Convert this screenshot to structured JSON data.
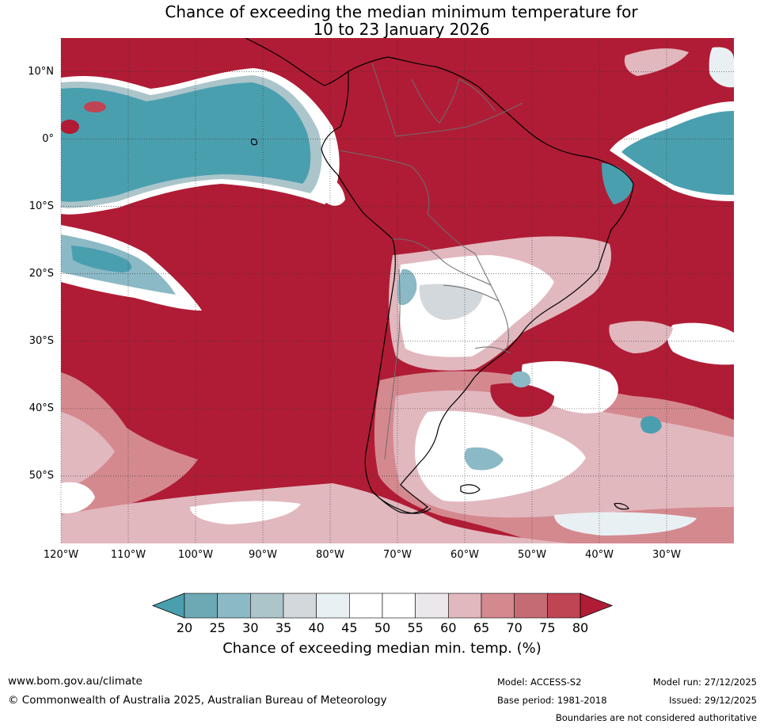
{
  "title": {
    "line1": "Chance of exceeding the median minimum temperature for",
    "line2": "10 to 23 January 2026"
  },
  "axes": {
    "lat_labels": [
      "10°N",
      "0°",
      "10°S",
      "20°S",
      "30°S",
      "40°S",
      "50°S"
    ],
    "lat_values": [
      10,
      0,
      -10,
      -20,
      -30,
      -40,
      -50
    ],
    "lon_labels": [
      "120°W",
      "110°W",
      "100°W",
      "90°W",
      "80°W",
      "70°W",
      "60°W",
      "50°W",
      "40°W",
      "30°W"
    ],
    "lon_values": [
      -120,
      -110,
      -100,
      -90,
      -80,
      -70,
      -60,
      -50,
      -40,
      -30
    ],
    "lon_range": [
      -120,
      -20
    ],
    "lat_range": [
      -60,
      15
    ]
  },
  "colorbar": {
    "ticks": [
      "20",
      "25",
      "30",
      "35",
      "40",
      "45",
      "50",
      "55",
      "60",
      "65",
      "70",
      "75",
      "80"
    ],
    "colors": [
      "#4a9faf",
      "#6ca9b5",
      "#8bb9c5",
      "#abc5cb",
      "#d3d8dc",
      "#e9f0f3",
      "#ffffff",
      "#ffffff",
      "#eae8ea",
      "#e1b8be",
      "#d4898f",
      "#c56b74",
      "#c04554",
      "#b01c35"
    ],
    "label": "Chance of exceeding median min. temp. (%)"
  },
  "palette": {
    "high": "#b01c35",
    "med_high": "#c04554",
    "mid": "#d4898f",
    "light": "#e1b8be",
    "white": "#ffffff",
    "pale": "#e9f0f3",
    "low": "#4a9faf"
  },
  "footer": {
    "website": "www.bom.gov.au/climate",
    "copyright": "© Commonwealth of Australia 2025, Australian Bureau of Meteorology",
    "model": "Model: ACCESS-S2",
    "base_period": "Base period: 1981-2018",
    "model_run": "Model run: 27/12/2025",
    "issued": "Issued: 29/12/2025",
    "disclaimer": "Boundaries are not considered authoritative"
  }
}
